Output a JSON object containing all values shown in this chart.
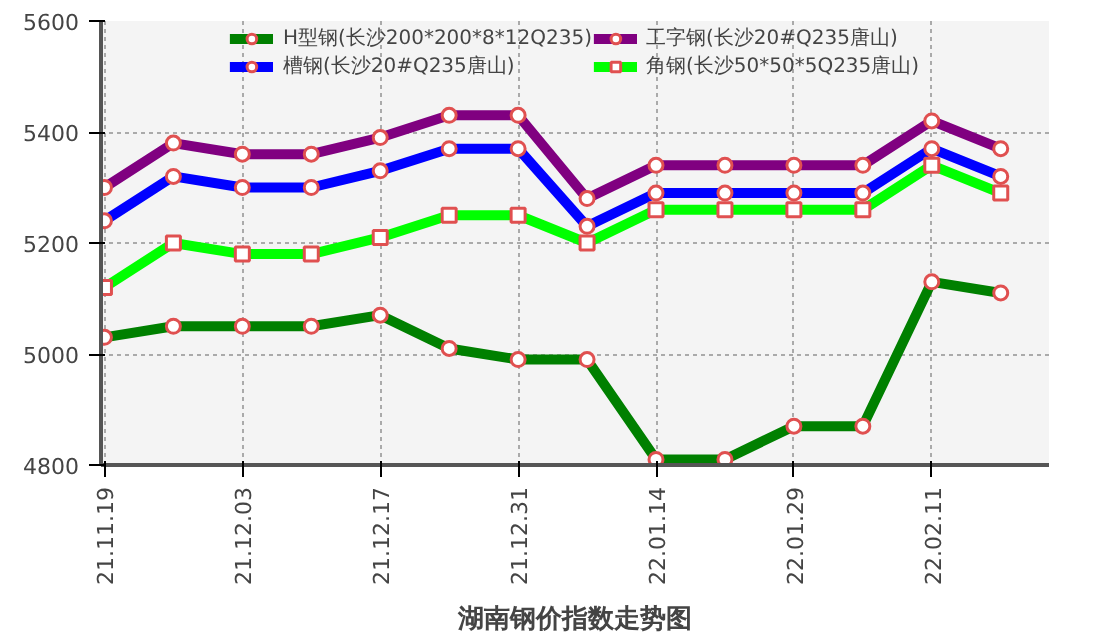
{
  "chart_data": {
    "type": "line",
    "title": "湖南钢价指数走势图",
    "categories": [
      "21.11.19",
      null,
      "21.12.03",
      null,
      "21.12.17",
      null,
      "21.12.31",
      null,
      "22.01.14",
      null,
      "22.01.29",
      null,
      "22.02.11",
      null
    ],
    "series": [
      {
        "name": "H型钢(长沙200*200*8*12Q235)",
        "color": "#008000",
        "marker": "circle",
        "values": [
          5030,
          5050,
          5050,
          5050,
          5070,
          5010,
          4990,
          4990,
          4810,
          4810,
          4870,
          4870,
          5130,
          5110
        ]
      },
      {
        "name": "槽钢(长沙20#Q235唐山)",
        "color": "#0000ff",
        "marker": "circle",
        "values": [
          5240,
          5320,
          5300,
          5300,
          5330,
          5370,
          5370,
          5230,
          5290,
          5290,
          5290,
          5290,
          5370,
          5320
        ]
      },
      {
        "name": "工字钢(长沙20#Q235唐山)",
        "color": "#800080",
        "marker": "circle",
        "values": [
          5300,
          5380,
          5360,
          5360,
          5390,
          5430,
          5430,
          5280,
          5340,
          5340,
          5340,
          5340,
          5420,
          5370
        ]
      },
      {
        "name": "角钢(长沙50*50*5Q235唐山)",
        "color": "#00ff00",
        "marker": "square",
        "values": [
          5120,
          5200,
          5180,
          5180,
          5210,
          5250,
          5250,
          5200,
          5260,
          5260,
          5260,
          5260,
          5340,
          5290
        ]
      }
    ],
    "ylim": [
      4800,
      5600
    ],
    "yticks": [
      4800,
      5000,
      5200,
      5400,
      5600
    ],
    "grid": true,
    "legend": "top",
    "line_style": "solid"
  }
}
